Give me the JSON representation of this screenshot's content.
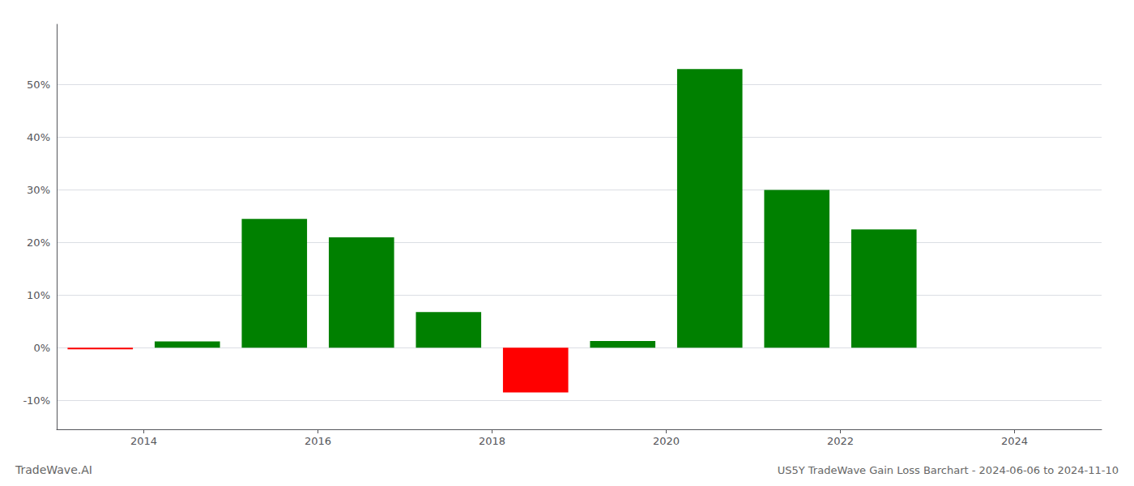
{
  "chart_data": {
    "type": "bar",
    "title": "US5Y TradeWave Gain Loss Barchart - 2024-06-06 to 2024-11-10",
    "annotations": [
      "TradeWave.AI"
    ],
    "x": [
      2013.5,
      2014.5,
      2015.5,
      2016.5,
      2017.5,
      2018.5,
      2019.5,
      2020.5,
      2021.5,
      2022.5,
      2023.5
    ],
    "values": [
      -0.003,
      0.012,
      0.245,
      0.21,
      0.068,
      -0.085,
      0.013,
      0.53,
      0.3,
      0.225,
      0.0
    ],
    "colors": [
      "#ff0000",
      "#008000",
      "#008000",
      "#008000",
      "#008000",
      "#ff0000",
      "#008000",
      "#008000",
      "#008000",
      "#008000",
      "#008000"
    ],
    "xlim": [
      2013.0,
      2025.0
    ],
    "xticks": [
      2014,
      2016,
      2018,
      2020,
      2022,
      2024
    ],
    "ylim": [
      -0.155,
      0.615
    ],
    "yticks": [
      {
        "value": -0.1,
        "label": "-10%"
      },
      {
        "value": 0.0,
        "label": "0%"
      },
      {
        "value": 0.1,
        "label": "10%"
      },
      {
        "value": 0.2,
        "label": "20%"
      },
      {
        "value": 0.3,
        "label": "30%"
      },
      {
        "value": 0.4,
        "label": "40%"
      },
      {
        "value": 0.5,
        "label": "50%"
      }
    ],
    "grid": true
  }
}
